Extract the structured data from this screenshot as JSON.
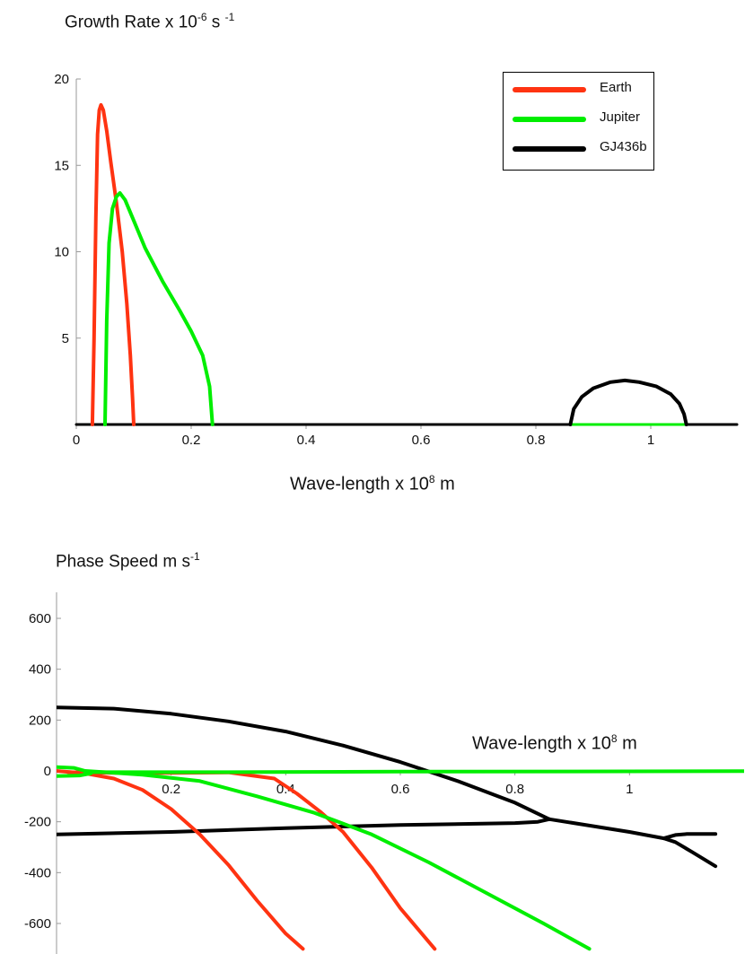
{
  "chart_data": [
    {
      "type": "line",
      "title_main": "Growth Rate x 10",
      "title_exp": "-6",
      "title_unit": " s ",
      "title_unit_exp": "-1",
      "xlabel_main": "Wave-length  x 10",
      "xlabel_exp": "8",
      "xlabel_unit": " m",
      "xlim": [
        0,
        1.15
      ],
      "ylim": [
        0,
        20
      ],
      "x_ticks": [
        "0",
        "0.2",
        "0.4",
        "0.6",
        "0.8",
        "1"
      ],
      "x_tick_values": [
        0,
        0.2,
        0.4,
        0.6,
        0.8,
        1.0
      ],
      "y_ticks": [
        "5",
        "10",
        "15",
        "20"
      ],
      "y_tick_values": [
        5,
        10,
        15,
        20
      ],
      "legend_position": "top-right",
      "series": [
        {
          "name": "Earth",
          "color": "#ff3311",
          "points": [
            [
              0.028,
              0
            ],
            [
              0.031,
              5
            ],
            [
              0.034,
              12
            ],
            [
              0.037,
              16.8
            ],
            [
              0.04,
              18.2
            ],
            [
              0.043,
              18.5
            ],
            [
              0.047,
              18.2
            ],
            [
              0.053,
              17
            ],
            [
              0.06,
              15.2
            ],
            [
              0.07,
              12.8
            ],
            [
              0.08,
              10
            ],
            [
              0.088,
              7
            ],
            [
              0.094,
              4
            ],
            [
              0.098,
              1.5
            ],
            [
              0.1,
              0
            ]
          ]
        },
        {
          "name": "Jupiter",
          "color": "#00ee00",
          "points": [
            [
              0.05,
              0
            ],
            [
              0.053,
              6
            ],
            [
              0.057,
              10.5
            ],
            [
              0.063,
              12.5
            ],
            [
              0.07,
              13.2
            ],
            [
              0.076,
              13.4
            ],
            [
              0.085,
              13
            ],
            [
              0.1,
              11.8
            ],
            [
              0.12,
              10.2
            ],
            [
              0.15,
              8.3
            ],
            [
              0.18,
              6.6
            ],
            [
              0.2,
              5.4
            ],
            [
              0.22,
              4
            ],
            [
              0.232,
              2.2
            ],
            [
              0.237,
              0
            ]
          ]
        },
        {
          "name": "GJ436b",
          "color": "#000000",
          "points": [
            [
              0.86,
              0
            ],
            [
              0.866,
              0.9
            ],
            [
              0.88,
              1.6
            ],
            [
              0.9,
              2.1
            ],
            [
              0.93,
              2.45
            ],
            [
              0.955,
              2.55
            ],
            [
              0.98,
              2.45
            ],
            [
              1.01,
              2.2
            ],
            [
              1.035,
              1.75
            ],
            [
              1.05,
              1.2
            ],
            [
              1.058,
              0.6
            ],
            [
              1.062,
              0
            ]
          ]
        },
        {
          "name": "",
          "color": "#000000",
          "points": [
            [
              0,
              0
            ],
            [
              1.15,
              0
            ]
          ]
        },
        {
          "name": "",
          "color": "#00ee00",
          "points": [
            [
              0.86,
              0
            ],
            [
              1.062,
              0
            ]
          ]
        }
      ]
    },
    {
      "type": "line",
      "title_main": "Phase Speed  m s",
      "title_exp": "-1",
      "xlabel_main": "Wave-length  x 10",
      "xlabel_exp": "8",
      "xlabel_unit": " m",
      "xlim": [
        0,
        1.2
      ],
      "ylim": [
        -680,
        700
      ],
      "x_ticks": [
        "0.2",
        "0.4",
        "0.6",
        "0.8",
        "1"
      ],
      "x_tick_values": [
        0.2,
        0.4,
        0.6,
        0.8,
        1.0
      ],
      "y_ticks": [
        "600",
        "400",
        "200",
        "0",
        "-200",
        "-400",
        "-600"
      ],
      "y_tick_values": [
        600,
        400,
        200,
        0,
        -200,
        -400,
        -600
      ],
      "series": [
        {
          "color": "#000000",
          "points": [
            [
              0,
              250
            ],
            [
              0.1,
              245
            ],
            [
              0.2,
              225
            ],
            [
              0.3,
              195
            ],
            [
              0.4,
              155
            ],
            [
              0.5,
              100
            ],
            [
              0.6,
              35
            ],
            [
              0.7,
              -40
            ],
            [
              0.8,
              -125
            ],
            [
              0.86,
              -190
            ]
          ]
        },
        {
          "color": "#000000",
          "points": [
            [
              0,
              -250
            ],
            [
              0.2,
              -240
            ],
            [
              0.4,
              -225
            ],
            [
              0.6,
              -213
            ],
            [
              0.8,
              -205
            ],
            [
              0.84,
              -200
            ],
            [
              0.86,
              -190
            ]
          ]
        },
        {
          "color": "#000000",
          "points": [
            [
              0.86,
              -190
            ],
            [
              0.93,
              -215
            ],
            [
              1.0,
              -240
            ],
            [
              1.06,
              -265
            ],
            [
              1.08,
              -280
            ],
            [
              1.11,
              -320
            ],
            [
              1.15,
              -375
            ]
          ]
        },
        {
          "color": "#000000",
          "points": [
            [
              1.06,
              -265
            ],
            [
              1.08,
              -252
            ],
            [
              1.1,
              -248
            ],
            [
              1.15,
              -248
            ]
          ]
        },
        {
          "color": "#ff3311",
          "points": [
            [
              0,
              0
            ],
            [
              0.05,
              -10
            ],
            [
              0.1,
              -30
            ],
            [
              0.15,
              -75
            ],
            [
              0.2,
              -150
            ],
            [
              0.25,
              -250
            ],
            [
              0.3,
              -370
            ],
            [
              0.35,
              -510
            ],
            [
              0.4,
              -640
            ],
            [
              0.43,
              -700
            ]
          ]
        },
        {
          "color": "#ff3311",
          "points": [
            [
              0.02,
              -5
            ],
            [
              0.1,
              -8
            ],
            [
              0.2,
              -8
            ],
            [
              0.3,
              -6
            ],
            [
              0.38,
              -30
            ],
            [
              0.42,
              -90
            ],
            [
              0.46,
              -160
            ],
            [
              0.5,
              -240
            ],
            [
              0.55,
              -380
            ],
            [
              0.6,
              -540
            ],
            [
              0.66,
              -700
            ]
          ]
        },
        {
          "color": "#00ee00",
          "points": [
            [
              0,
              15
            ],
            [
              0.03,
              12
            ],
            [
              0.05,
              0
            ],
            [
              0.06,
              -10
            ],
            [
              0.04,
              -18
            ],
            [
              0,
              -20
            ]
          ]
        },
        {
          "color": "#00ee00",
          "points": [
            [
              0.05,
              0
            ],
            [
              0.15,
              -15
            ],
            [
              0.25,
              -40
            ],
            [
              0.35,
              -100
            ],
            [
              0.45,
              -165
            ],
            [
              0.55,
              -250
            ],
            [
              0.65,
              -360
            ],
            [
              0.75,
              -480
            ],
            [
              0.85,
              -600
            ],
            [
              0.93,
              -700
            ]
          ]
        },
        {
          "color": "#00ee00",
          "points": [
            [
              0.05,
              -5
            ],
            [
              0.3,
              -5
            ],
            [
              0.6,
              -3
            ],
            [
              0.9,
              -2
            ],
            [
              1.2,
              -1
            ]
          ]
        }
      ]
    }
  ]
}
